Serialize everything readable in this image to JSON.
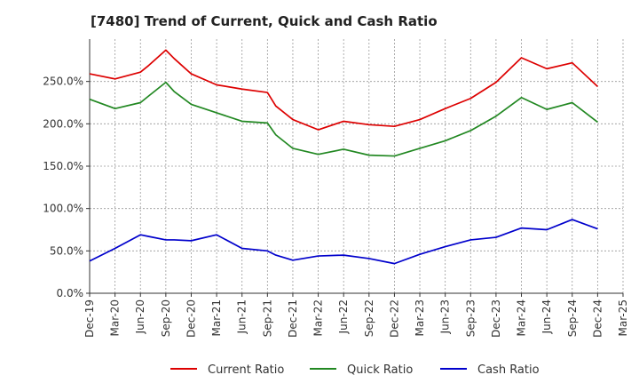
{
  "chart_data": {
    "type": "line",
    "title": "[7480]  Trend of Current, Quick and Cash Ratio",
    "xlabel": "",
    "ylabel": "",
    "ylim": [
      0,
      300
    ],
    "yticks": [
      0,
      50,
      100,
      150,
      200,
      250
    ],
    "ytick_labels": [
      "0.0%",
      "50.0%",
      "100.0%",
      "150.0%",
      "200.0%",
      "250.0%"
    ],
    "x_labels": [
      "Dec-19",
      "Mar-20",
      "Jun-20",
      "Sep-20",
      "Dec-20",
      "Mar-21",
      "Jun-21",
      "Sep-21",
      "Dec-21",
      "Mar-22",
      "Jun-22",
      "Sep-22",
      "Dec-22",
      "Mar-23",
      "Jun-23",
      "Sep-23",
      "Dec-23",
      "Mar-24",
      "Jun-24",
      "Sep-24",
      "Dec-24",
      "Mar-25"
    ],
    "x_points": [
      "Dec-19",
      "Mar-20",
      "Jun-20",
      "Jul-20",
      "Sep-20",
      "Oct-20",
      "Dec-20",
      "Mar-21",
      "Jun-21",
      "Sep-21",
      "Oct-21",
      "Dec-21",
      "Mar-22",
      "Jun-22",
      "Sep-22",
      "Dec-22",
      "Mar-23",
      "Jun-23",
      "Sep-23",
      "Dec-23",
      "Mar-24",
      "Jun-24",
      "Sep-24",
      "Dec-24"
    ],
    "x_index": [
      0,
      1,
      2,
      2.33,
      3,
      3.33,
      4,
      5,
      6,
      7,
      7.33,
      8,
      9,
      10,
      11,
      12,
      13,
      14,
      15,
      16,
      17,
      18,
      19,
      20
    ],
    "grid": true,
    "legend_position": "bottom",
    "series": [
      {
        "name": "Current Ratio",
        "color": "#dd0000",
        "values": [
          259,
          253,
          261,
          269,
          287,
          277,
          259,
          246,
          241,
          237,
          221,
          205,
          193,
          203,
          199,
          197,
          205,
          218,
          230,
          249,
          278,
          265,
          272,
          244
        ]
      },
      {
        "name": "Quick Ratio",
        "color": "#228822",
        "values": [
          229,
          218,
          225,
          233,
          249,
          238,
          223,
          213,
          203,
          201,
          187,
          171,
          164,
          170,
          163,
          162,
          171,
          180,
          192,
          209,
          231,
          217,
          225,
          202
        ]
      },
      {
        "name": "Cash Ratio",
        "color": "#0000cc",
        "values": [
          38,
          53,
          69,
          67,
          63,
          63,
          62,
          69,
          53,
          50,
          45,
          39,
          44,
          45,
          41,
          35,
          46,
          55,
          63,
          66,
          77,
          75,
          87,
          76
        ]
      }
    ]
  }
}
